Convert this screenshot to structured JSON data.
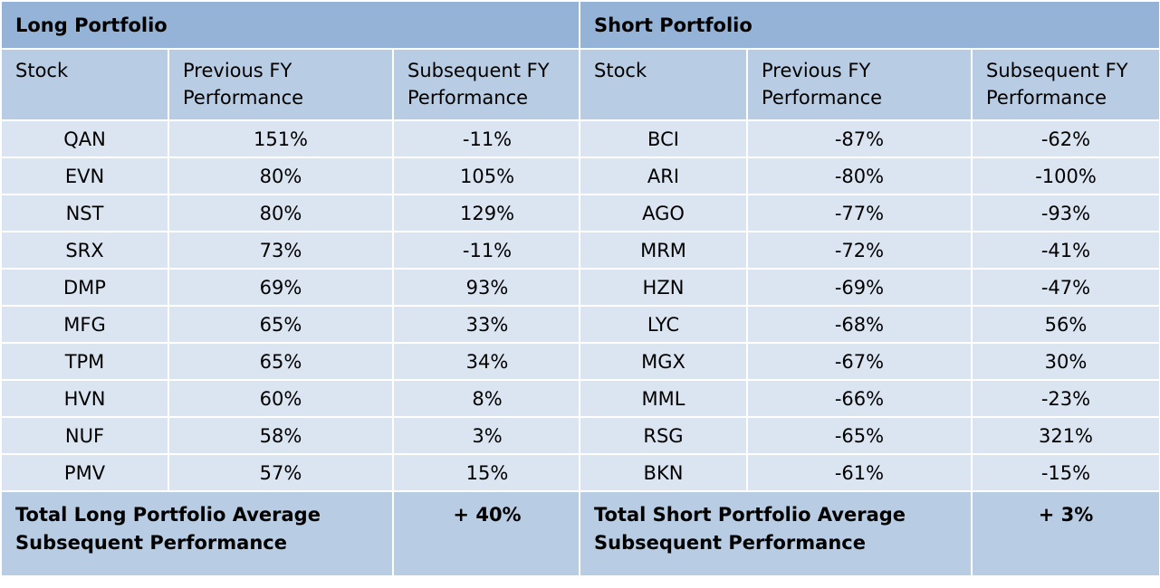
{
  "long": {
    "title": "Long Portfolio",
    "columns": [
      "Stock",
      "Previous FY Performance",
      "Subsequent FY Performance"
    ],
    "rows": [
      [
        "QAN",
        "151%",
        "-11%"
      ],
      [
        "EVN",
        "80%",
        "105%"
      ],
      [
        "NST",
        "80%",
        "129%"
      ],
      [
        "SRX",
        "73%",
        "-11%"
      ],
      [
        "DMP",
        "69%",
        "93%"
      ],
      [
        "MFG",
        "65%",
        "33%"
      ],
      [
        "TPM",
        "65%",
        "34%"
      ],
      [
        "HVN",
        "60%",
        "8%"
      ],
      [
        "NUF",
        "58%",
        "3%"
      ],
      [
        "PMV",
        "57%",
        "15%"
      ]
    ],
    "total": {
      "label": "Total Long Portfolio Average Subsequent Performance",
      "value": "+ 40%"
    }
  },
  "short": {
    "title": "Short Portfolio",
    "columns": [
      "Stock",
      "Previous FY Performance",
      "Subsequent FY Performance"
    ],
    "rows": [
      [
        "BCI",
        "-87%",
        "-62%"
      ],
      [
        "ARI",
        "-80%",
        "-100%"
      ],
      [
        "AGO",
        "-77%",
        "-93%"
      ],
      [
        "MRM",
        "-72%",
        "-41%"
      ],
      [
        "HZN",
        "-69%",
        "-47%"
      ],
      [
        "LYC",
        "-68%",
        "56%"
      ],
      [
        "MGX",
        "-67%",
        "30%"
      ],
      [
        "MML",
        "-66%",
        "-23%"
      ],
      [
        "RSG",
        "-65%",
        "321%"
      ],
      [
        "BKN",
        "-61%",
        "-15%"
      ]
    ],
    "total": {
      "label": "Total Short Portfolio Average Subsequent Performance",
      "value": "+ 3%"
    }
  }
}
